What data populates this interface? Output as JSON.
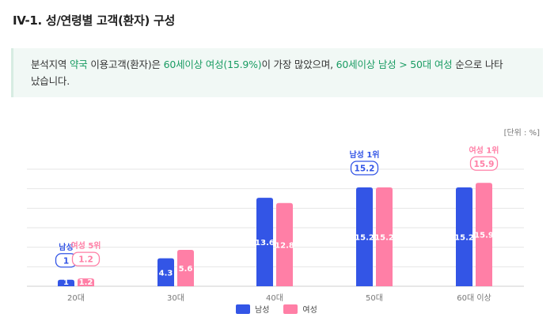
{
  "header": {
    "title": "IV-1. 성/연령별 고객(환자) 구성"
  },
  "summary": {
    "parts": [
      {
        "text": "분석지역 ",
        "hl": false
      },
      {
        "text": "약국",
        "hl": true
      },
      {
        "text": " 이용고객(환자)은 ",
        "hl": false
      },
      {
        "text": "60세이상 여성(15.9%)",
        "hl": true
      },
      {
        "text": "이 가장 많았으며, ",
        "hl": false
      },
      {
        "text": "60세이상 남성 > 50대 여성",
        "hl": true
      },
      {
        "text": " 순으로 나타났습니다.",
        "hl": false
      }
    ]
  },
  "unit_label": "[단위 : %]",
  "colors": {
    "male": "#3355e6",
    "female": "#ff7fa6",
    "grid": "#e6e6e6",
    "highlight": "#1a9c63"
  },
  "chart_data": {
    "type": "bar",
    "categories": [
      "20대",
      "30대",
      "40대",
      "50대",
      "60대 이상"
    ],
    "series": [
      {
        "name": "남성",
        "values": [
          1,
          4.3,
          13.6,
          15.2,
          15.2
        ]
      },
      {
        "name": "여성",
        "values": [
          1.2,
          5.6,
          12.8,
          15.2,
          15.9
        ]
      }
    ],
    "ylim": [
      0,
      18
    ],
    "grid": true,
    "legend_position": "bottom",
    "callouts": [
      {
        "series": 0,
        "category": 0,
        "label": "남성",
        "value": "1"
      },
      {
        "series": 1,
        "category": 0,
        "label": "여성 5위",
        "value": "1.2"
      },
      {
        "series": 0,
        "category": 3,
        "label": "남성 1위",
        "value": "15.2"
      },
      {
        "series": 1,
        "category": 4,
        "label": "여성 1위",
        "value": "15.9"
      }
    ]
  }
}
